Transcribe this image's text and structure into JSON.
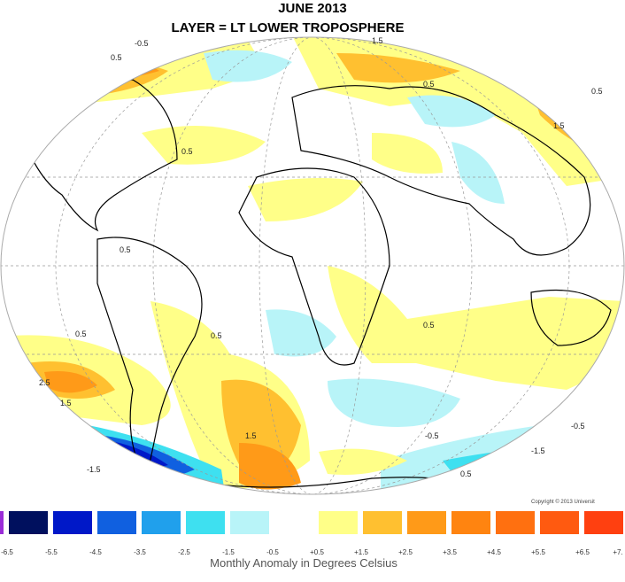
{
  "header": {
    "title": "JUNE 2013",
    "subtitle": "LAYER = LT LOWER TROPOSPHERE"
  },
  "contour_labels": [
    "-0.5",
    "0.5",
    "1.5",
    "0.5",
    "0.5",
    "1.5",
    "0.5",
    "0.5",
    "0.5",
    "0.5",
    "2.5",
    "1.5",
    "0.5",
    "-0.5",
    "-1.5",
    "-1.5",
    "-0.5",
    "0.5",
    "1.5"
  ],
  "copyright": "Copyright © 2013 Universit",
  "legend": {
    "colors": [
      "#9a2cd8",
      "#00105e",
      "#0018c8",
      "#1060e0",
      "#20a0ec",
      "#3ee0f0",
      "#b8f4f8",
      "#ffffff",
      "#ffff88",
      "#ffc030",
      "#ff9a18",
      "#ff8410",
      "#ff7010",
      "#ff5a10",
      "#ff4010"
    ],
    "labels": [
      "-6.5",
      "-5.5",
      "-4.5",
      "-3.5",
      "-2.5",
      "-1.5",
      "-0.5",
      "+0.5",
      "+1.5",
      "+2.5",
      "+3.5",
      "+4.5",
      "+5.5",
      "+6.5",
      "+7."
    ],
    "caption": "Monthly Anomaly in Degrees Celsius"
  }
}
